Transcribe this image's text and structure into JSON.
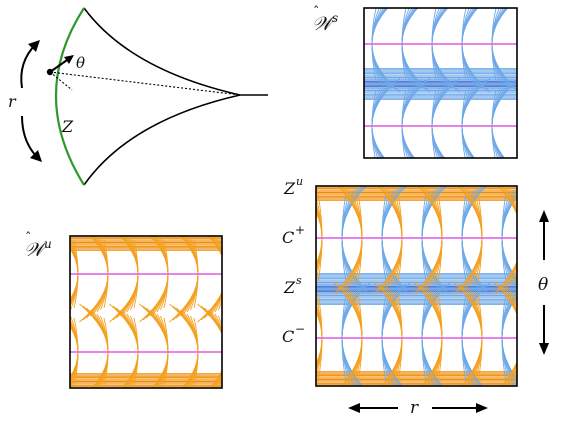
{
  "labels": {
    "r_left": "r",
    "theta_small": "θ",
    "Z": "Z",
    "Ws_hat": "𝒲",
    "Ws_sup": "s",
    "Wu_hat": "𝒲",
    "Wu_sup": "u",
    "Zu_base": "Z",
    "Zu_sup": "u",
    "Cplus_base": "C",
    "Cplus_sup": "+",
    "Zs_base": "Z",
    "Zs_sup": "s",
    "Cminus_base": "C",
    "Cminus_sup": "−",
    "theta_right": "θ",
    "r_bottom": "r"
  },
  "colors": {
    "blue": "#6ea8e8",
    "blue_dark": "#2f6fd6",
    "orange": "#f4a020",
    "orange_dark": "#f08a00",
    "magenta": "#e05ae0",
    "green": "#2e9a2e",
    "black": "#000000"
  }
}
